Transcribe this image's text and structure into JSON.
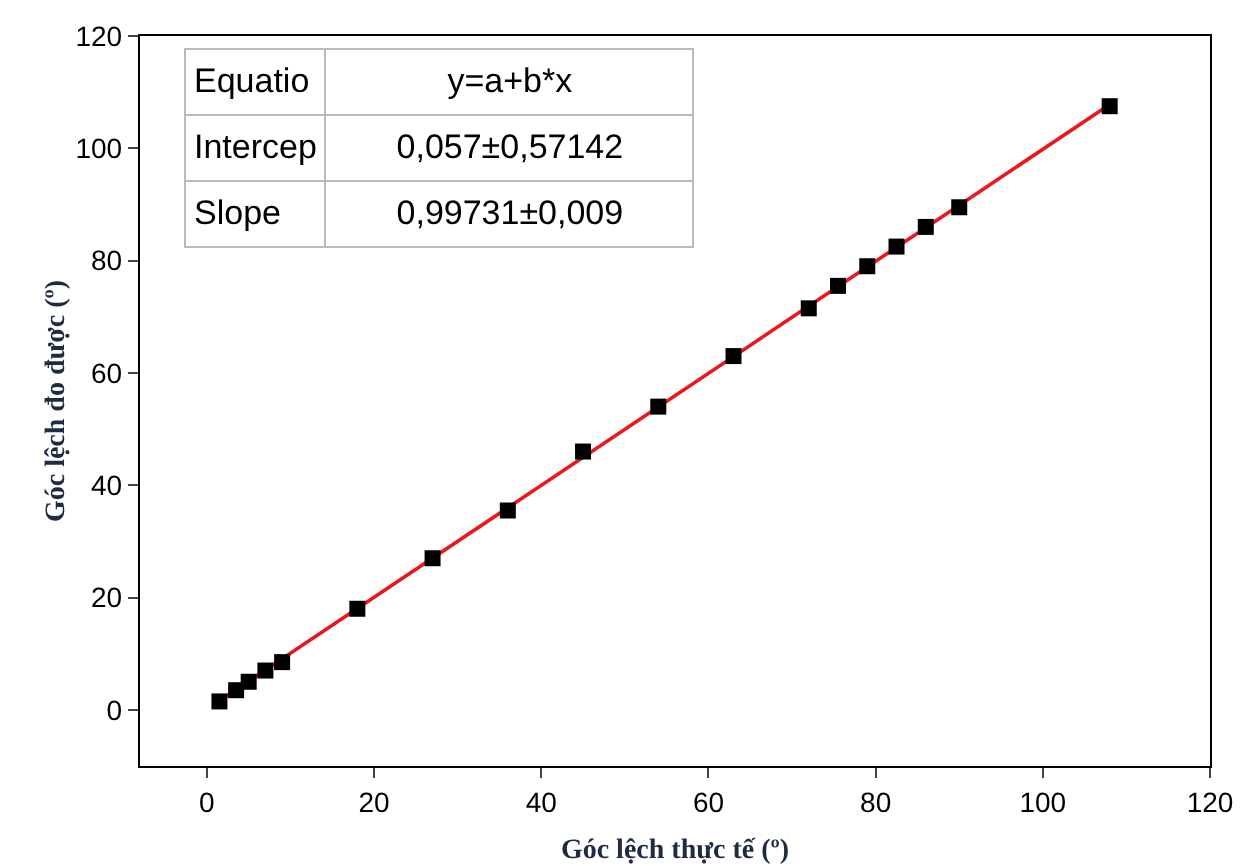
{
  "chart_data": {
    "type": "scatter",
    "xlabel": "Góc lệch thực tế (º)",
    "ylabel": "Góc lệch đo được (º)",
    "annotations": [
      "Equatio",
      "y=a+b*x",
      "Intercep",
      "0,057±0,57142",
      "Slope",
      "0,99731±0,009"
    ],
    "x": [
      1.5,
      3.5,
      5,
      7,
      9,
      18,
      27,
      36,
      45,
      54,
      63,
      72,
      75.5,
      79,
      82.5,
      86,
      90,
      108
    ],
    "series": [
      {
        "color": "#000000",
        "marker": "square",
        "values": [
          1.5,
          3.5,
          5,
          7,
          8.5,
          18,
          27,
          35.5,
          46,
          54,
          63,
          71.5,
          75.5,
          79,
          82.5,
          86,
          89.5,
          107.5
        ]
      },
      {
        "type": "line",
        "color": "#e8181e",
        "marker": "none",
        "x": [
          1.5,
          108
        ],
        "values": [
          1.6,
          107.8
        ]
      }
    ],
    "xlim": [
      -8,
      120
    ],
    "ylim": [
      -10,
      120
    ],
    "xticks": [
      0,
      20,
      40,
      60,
      80,
      100,
      120
    ],
    "yticks": [
      0,
      20,
      40,
      60,
      80,
      100,
      120
    ],
    "grid": false
  }
}
